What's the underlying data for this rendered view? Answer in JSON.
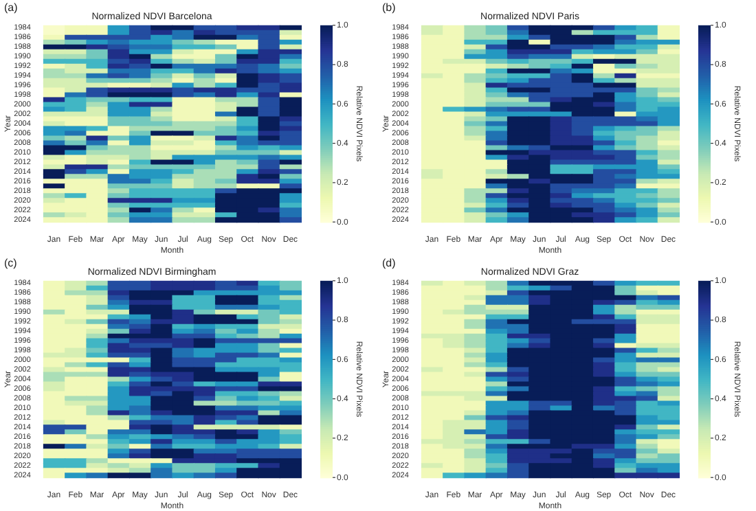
{
  "chart_data": [
    {
      "type": "heatmap",
      "title": "Normalized NDVI Barcelona",
      "xlabel": "Month",
      "ylabel": "Year",
      "clabel": "Relative NDVI Pixels",
      "annotations": [
        "(a)"
      ],
      "categories": [
        "Jan",
        "Feb",
        "Mar",
        "Apr",
        "May",
        "Jun",
        "Jul",
        "Aug",
        "Sep",
        "Oct",
        "Nov",
        "Dec"
      ],
      "y_categories": [
        "1984",
        null,
        "1986",
        null,
        "1988",
        null,
        "1990",
        null,
        "1992",
        null,
        "1994",
        null,
        "1996",
        null,
        "1998",
        null,
        "2000",
        null,
        "2002",
        null,
        "2004",
        null,
        "2006",
        null,
        "2008",
        null,
        "2010",
        null,
        "2012",
        null,
        "2014",
        null,
        "2016",
        null,
        "2018",
        null,
        "2020",
        null,
        "2022",
        null,
        "2024"
      ],
      "clim": [
        0,
        1
      ],
      "cticks": [
        {
          "value": 0,
          "label": "0.0"
        },
        {
          "value": 0.2,
          "label": "0.2"
        },
        {
          "value": 0.4,
          "label": "0.4"
        },
        {
          "value": 0.6,
          "label": "0.6"
        },
        {
          "value": 0.8,
          "label": "0.8"
        },
        {
          "value": 1,
          "label": "1.0"
        }
      ],
      "cells": [
        [
          0.05,
          0.1,
          0.1,
          0.6,
          0.8,
          1,
          1,
          0.8,
          0.8,
          0.9,
          0.9,
          1
        ],
        [
          0.05,
          0.1,
          0.1,
          0.6,
          0.8,
          0.9,
          0.7,
          0.9,
          0.8,
          0.8,
          0.8,
          0.2
        ],
        [
          0.1,
          0.8,
          0.8,
          0.8,
          0.8,
          0.6,
          0.7,
          1,
          1,
          0.7,
          0.8,
          0.1
        ],
        [
          0.3,
          0.4,
          0.6,
          0.7,
          0.6,
          0.6,
          0.4,
          0.3,
          0.1,
          0.1,
          0.8,
          0.6
        ],
        [
          1,
          1,
          0.9,
          0.8,
          0.7,
          0.7,
          0.5,
          0.5,
          0.4,
          0.1,
          0.8,
          0.2
        ],
        [
          0.2,
          0.2,
          0.4,
          0.9,
          0.6,
          0.6,
          0.2,
          0.1,
          0.1,
          0.6,
          0.9,
          0.9
        ],
        [
          0.3,
          0.3,
          0.4,
          0.9,
          1,
          0.3,
          0.1,
          0.1,
          0.4,
          1,
          0.9,
          0.7
        ],
        [
          0.5,
          0.5,
          0.5,
          0.8,
          0.9,
          0.5,
          0.3,
          0.2,
          0.4,
          0.9,
          0.9,
          0.5
        ],
        [
          0.1,
          0.2,
          0.5,
          0.9,
          0.8,
          1,
          0.7,
          0.7,
          0.7,
          0.8,
          0.7,
          0.4
        ],
        [
          0.3,
          0.2,
          0.2,
          0.7,
          0.7,
          0.5,
          0.5,
          0.7,
          0.9,
          0.8,
          0.7,
          0.6
        ],
        [
          0.3,
          0.3,
          0.7,
          0.8,
          0.7,
          0.4,
          0.2,
          0.4,
          0.2,
          1,
          0.9,
          0.8
        ],
        [
          0.2,
          0.2,
          0.4,
          0.4,
          0.4,
          0.3,
          0.1,
          0.3,
          0.1,
          1,
          0.9,
          0.8
        ],
        [
          0.2,
          0.2,
          0.2,
          0.1,
          0.1,
          0.2,
          0.6,
          0.3,
          0.5,
          1,
          0.8,
          0.9
        ],
        [
          0.1,
          0.2,
          0.8,
          0.9,
          0.9,
          0.9,
          0.8,
          0.9,
          0.9,
          0.8,
          0.8,
          0.9
        ],
        [
          0.1,
          0.7,
          0.8,
          1,
          1,
          1,
          0.8,
          0.7,
          0.9,
          0.6,
          0.9,
          0.1
        ],
        [
          0.9,
          0.5,
          0.4,
          0.4,
          0.5,
          0.5,
          0.1,
          0.1,
          0.3,
          0.3,
          0.8,
          1
        ],
        [
          0.5,
          0.5,
          0.3,
          0.6,
          0.9,
          0.9,
          0.1,
          0.1,
          0.2,
          0.3,
          0.8,
          1
        ],
        [
          0.6,
          0.5,
          0.2,
          0.6,
          0.6,
          0.3,
          0.1,
          0.1,
          0.2,
          1,
          0.8,
          1
        ],
        [
          0.2,
          0.2,
          0.2,
          0.6,
          0.6,
          0.2,
          0.1,
          0.1,
          0.7,
          1,
          0.8,
          1
        ],
        [
          0.1,
          0.1,
          0.1,
          0.4,
          0.4,
          0.3,
          0.1,
          0.1,
          0.2,
          0.5,
          1,
          0.9
        ],
        [
          0.2,
          0.1,
          0.1,
          0.4,
          0.4,
          0.4,
          0.3,
          0.3,
          0.3,
          0.5,
          1,
          0.8
        ],
        [
          0.6,
          0.6,
          0.5,
          0.1,
          0.3,
          0.3,
          0.3,
          0.3,
          0.4,
          0.6,
          1,
          0.9
        ],
        [
          0.6,
          0.7,
          0.1,
          0.1,
          0.4,
          1,
          1,
          0.4,
          0.4,
          0.5,
          0.9,
          0.8
        ],
        [
          0.4,
          0.3,
          0.9,
          0.4,
          0.6,
          0.1,
          0.1,
          0.2,
          0.9,
          0.7,
          1,
          0.8
        ],
        [
          0.7,
          0.4,
          0.7,
          0.1,
          0.6,
          0.2,
          0.2,
          0.1,
          0.5,
          0.7,
          0.8,
          0.8
        ],
        [
          1,
          1,
          0.4,
          0.3,
          0.3,
          0.1,
          0.1,
          0.1,
          0.3,
          0.6,
          0.5,
          0.6
        ],
        [
          1,
          0.6,
          0.3,
          0.3,
          0.3,
          0.2,
          0.2,
          0.2,
          0.4,
          0.4,
          0.4,
          0.2
        ],
        [
          0.2,
          0.1,
          0.2,
          0.2,
          0.3,
          0.2,
          0.6,
          0.6,
          0.6,
          0.6,
          0.7,
          0.6
        ],
        [
          0.1,
          0.1,
          0.2,
          0.1,
          0.5,
          1,
          1,
          0.6,
          0.3,
          0.4,
          0.8,
          1
        ],
        [
          0.2,
          0.9,
          0.9,
          0.3,
          0.4,
          0.4,
          0.4,
          0.4,
          0.3,
          0.3,
          0.8,
          0.3
        ],
        [
          1,
          0.8,
          0.6,
          0.1,
          0.6,
          0.6,
          0.5,
          0.3,
          0.3,
          0.6,
          0.9,
          0.8
        ],
        [
          1,
          0.3,
          0.3,
          0.7,
          0.6,
          0.6,
          0.3,
          0.3,
          0.3,
          0.9,
          1,
          0.4
        ],
        [
          0.1,
          0.1,
          0.1,
          0.7,
          0.7,
          0.5,
          0.2,
          0.3,
          0.4,
          0.9,
          0.9,
          0.6
        ],
        [
          1,
          0.1,
          0.1,
          0.4,
          0.4,
          0.4,
          0.2,
          0.3,
          0.3,
          0.1,
          0.1,
          0.8
        ],
        [
          0.1,
          0.1,
          0.1,
          0.3,
          0.5,
          0.5,
          0.5,
          0.5,
          0.8,
          1,
          1,
          1
        ],
        [
          0.3,
          0.5,
          0.1,
          0.4,
          0.5,
          0.5,
          0.5,
          0.5,
          1,
          1,
          1,
          0.6
        ],
        [
          0.2,
          0.1,
          0.1,
          0.9,
          0.9,
          0.9,
          0.6,
          0.6,
          1,
          1,
          1,
          0.6
        ],
        [
          0.1,
          0.1,
          0.1,
          0.4,
          0.5,
          0.5,
          0.5,
          0.5,
          1,
          1,
          1,
          0.5
        ],
        [
          0.1,
          0.1,
          0.1,
          0.3,
          1,
          0.7,
          0.3,
          0.1,
          1,
          1,
          0.9,
          0.7
        ],
        [
          0.3,
          0.2,
          0.1,
          0.4,
          0.6,
          0.6,
          0.2,
          0.2,
          0.5,
          1,
          1,
          0.7
        ],
        [
          0.1,
          0.1,
          0.1,
          0.3,
          0.7,
          0.7,
          0.3,
          0.3,
          1,
          1,
          1,
          0.8
        ]
      ]
    },
    {
      "type": "heatmap",
      "title": "Normalized NDVI Paris",
      "xlabel": "Month",
      "ylabel": "Year",
      "clabel": "Relative NDVI Pixels",
      "annotations": [
        "(b)"
      ],
      "categories": [
        "Jan",
        "Feb",
        "Mar",
        "Apr",
        "May",
        "Jun",
        "Jul",
        "Aug",
        "Sep",
        "Oct",
        "Nov",
        "Dec"
      ],
      "y_categories": [
        "1984",
        null,
        "1986",
        null,
        "1988",
        null,
        "1990",
        null,
        "1992",
        null,
        "1994",
        null,
        "1996",
        null,
        "1998",
        null,
        "2000",
        null,
        "2002",
        null,
        "2004",
        null,
        "2006",
        null,
        "2008",
        null,
        "2010",
        null,
        "2012",
        null,
        "2014",
        null,
        "2016",
        null,
        "2018",
        null,
        "2020",
        null,
        "2022",
        null,
        "2024"
      ],
      "clim": [
        0,
        1
      ],
      "cticks": [
        {
          "value": 0,
          "label": "0.0"
        },
        {
          "value": 0.2,
          "label": "0.2"
        },
        {
          "value": 0.4,
          "label": "0.4"
        },
        {
          "value": 0.6,
          "label": "0.6"
        },
        {
          "value": 0.8,
          "label": "0.8"
        },
        {
          "value": 1,
          "label": "1.0"
        }
      ],
      "cells": [
        [
          0.2,
          0.1,
          0.3,
          0.4,
          0.8,
          1,
          1,
          1,
          0.8,
          0.6,
          0.5,
          0.1
        ],
        [
          0.2,
          0.1,
          0.3,
          0.4,
          0.7,
          1,
          1,
          0.3,
          0.5,
          0.5,
          0.5,
          0.1
        ],
        [
          0.1,
          0.1,
          0.3,
          0.3,
          0.6,
          0.8,
          1,
          1,
          1,
          0.8,
          0.3,
          0.1
        ],
        [
          0.1,
          0.1,
          0.5,
          0.5,
          1,
          0.1,
          1,
          1,
          1,
          0.7,
          0.6,
          0.6
        ],
        [
          0.1,
          0.1,
          0.2,
          0.8,
          1,
          1,
          0.8,
          0.8,
          0.7,
          0.5,
          0.5,
          0.2
        ],
        [
          0.1,
          0.1,
          0.4,
          0.6,
          0.9,
          0.9,
          0.9,
          0.5,
          0.6,
          0.6,
          0.4,
          0.1
        ],
        [
          0.1,
          0.1,
          0.6,
          0.6,
          0.8,
          0.7,
          0.7,
          0.2,
          0.1,
          0.2,
          0.2,
          0.2
        ],
        [
          0.1,
          0.2,
          0.2,
          0.4,
          0.5,
          0.4,
          0.4,
          0.5,
          1,
          1,
          0.2,
          0.2
        ],
        [
          0.1,
          0.1,
          0.1,
          0.2,
          0.3,
          0.4,
          0.5,
          1,
          0.1,
          0.4,
          0.3,
          0.2
        ],
        [
          0.1,
          0.1,
          0.1,
          0.5,
          1,
          1,
          0.7,
          0.6,
          0.1,
          0.1,
          0.2,
          0.2
        ],
        [
          0.2,
          0.1,
          0.3,
          0.4,
          0.5,
          0.5,
          0.8,
          1,
          0.3,
          0.9,
          0.1,
          0.1
        ],
        [
          0.1,
          0.1,
          0.3,
          0.5,
          0.6,
          0.8,
          0.8,
          1,
          0.5,
          0.3,
          0.2,
          0.2
        ],
        [
          0.1,
          0.1,
          0.2,
          0.9,
          0.8,
          0.8,
          0.8,
          0.8,
          1,
          1,
          0.2,
          0.2
        ],
        [
          0.1,
          0.1,
          0.2,
          0.5,
          1,
          1,
          0.8,
          0.8,
          0.8,
          0.8,
          0.4,
          0.3
        ],
        [
          0.1,
          0.1,
          0.2,
          0.4,
          0.7,
          0.8,
          0.8,
          0.8,
          1,
          0.6,
          0.4,
          0.2
        ],
        [
          0.1,
          0.1,
          0.2,
          0.3,
          0.3,
          0.8,
          0.9,
          1,
          1,
          0.6,
          0.5,
          0.4
        ],
        [
          0.1,
          0.1,
          0.2,
          0.4,
          0.4,
          0.4,
          1,
          1,
          0.9,
          0.7,
          0.5,
          0.5
        ],
        [
          0.1,
          0.5,
          0.6,
          0.7,
          0.8,
          0.8,
          1,
          1,
          1,
          0.7,
          0.5,
          0.6
        ],
        [
          0.1,
          0.1,
          0.2,
          0.6,
          0.6,
          0.6,
          0.6,
          1,
          1,
          0.1,
          0.6,
          0.6
        ],
        [
          0.1,
          0.1,
          0.3,
          0.4,
          1,
          1,
          0.9,
          0.8,
          0.8,
          0.8,
          0.7,
          0.6
        ],
        [
          0.1,
          0.1,
          0.4,
          0.7,
          1,
          1,
          0.9,
          0.8,
          0.8,
          0.8,
          0.8,
          0.6
        ],
        [
          0.1,
          0.1,
          0.3,
          0.5,
          1,
          1,
          0.9,
          0.8,
          0.6,
          0.5,
          0.4,
          0.3
        ],
        [
          0.1,
          0.1,
          0.3,
          0.7,
          1,
          1,
          0.9,
          0.8,
          0.5,
          0.4,
          0.4,
          0.2
        ],
        [
          0.1,
          0.1,
          0.2,
          0.7,
          1,
          1,
          0.9,
          0.9,
          0.6,
          0.4,
          0.3,
          0.2
        ],
        [
          0.1,
          0.1,
          0.1,
          0.8,
          1,
          1,
          0.9,
          0.9,
          0.8,
          0.5,
          0.3,
          0.1
        ],
        [
          0.1,
          0.1,
          0.1,
          0.4,
          0.7,
          0.8,
          1,
          1,
          0.6,
          0.4,
          0.3,
          0.2
        ],
        [
          0.1,
          0.1,
          0.1,
          1,
          1,
          0.9,
          0.9,
          0.9,
          0.8,
          0.8,
          0.5,
          0.3
        ],
        [
          0.1,
          0.1,
          0.1,
          0.6,
          0.9,
          1,
          0.9,
          0.9,
          0.9,
          0.8,
          0.4,
          0.3
        ],
        [
          0.1,
          0.1,
          0.1,
          0.1,
          1,
          1,
          0.8,
          0.8,
          0.8,
          0.8,
          0.6,
          0.2
        ],
        [
          0.1,
          0.1,
          0.1,
          0.1,
          1,
          1,
          0.5,
          0.5,
          0.6,
          0.6,
          0.6,
          0.4
        ],
        [
          0.2,
          0.1,
          0.1,
          0.3,
          1,
          1,
          0.5,
          0.5,
          0.8,
          0.8,
          0.6,
          0.5
        ],
        [
          0.2,
          0.1,
          0.1,
          0.2,
          0.3,
          1,
          1,
          1,
          0.8,
          0.7,
          0.6,
          0.6
        ],
        [
          0.1,
          0.1,
          0.1,
          1,
          1,
          0.9,
          1,
          1,
          0.8,
          0.8,
          0.3,
          0.2
        ],
        [
          0.1,
          0.1,
          0.1,
          0.7,
          1,
          1,
          0.8,
          0.8,
          0.8,
          0.7,
          0.1,
          0.1
        ],
        [
          0.1,
          0.1,
          0.3,
          0.3,
          0.9,
          1,
          0.8,
          0.7,
          0.7,
          0.5,
          0.5,
          0.3
        ],
        [
          0.1,
          0.1,
          0.3,
          0.8,
          1,
          1,
          0.9,
          0.6,
          0.5,
          0.5,
          0.4,
          0.3
        ],
        [
          0.1,
          0.1,
          0.3,
          0.6,
          0.9,
          1,
          0.8,
          0.8,
          0.7,
          0.5,
          0.5,
          0.4
        ],
        [
          0.1,
          0.1,
          0.2,
          0.5,
          0.8,
          1,
          0.9,
          0.8,
          0.8,
          0.6,
          0.4,
          0.2
        ],
        [
          0.1,
          0.1,
          0.4,
          0.7,
          1,
          1,
          1,
          1,
          0.8,
          0.7,
          0.6,
          0.3
        ],
        [
          0.1,
          0.1,
          0.2,
          0.4,
          0.6,
          1,
          1,
          0.9,
          0.9,
          0.8,
          0.6,
          0.4
        ],
        [
          0.1,
          0.1,
          0.2,
          0.5,
          0.7,
          1,
          1,
          1,
          0.9,
          0.6,
          0.5,
          0.2
        ]
      ]
    },
    {
      "type": "heatmap",
      "title": "Normalized NDVI Birmingham",
      "xlabel": "Month",
      "ylabel": "Year",
      "clabel": "Relative NDVI Pixels",
      "annotations": [
        "(c)"
      ],
      "categories": [
        "Jan",
        "Feb",
        "Mar",
        "Apr",
        "May",
        "Jun",
        "Jul",
        "Aug",
        "Sep",
        "Oct",
        "Nov",
        "Dec"
      ],
      "y_categories": [
        "1984",
        null,
        "1986",
        null,
        "1988",
        null,
        "1990",
        null,
        "1992",
        null,
        "1994",
        null,
        "1996",
        null,
        "1998",
        null,
        "2000",
        null,
        "2002",
        null,
        "2004",
        null,
        "2006",
        null,
        "2008",
        null,
        "2010",
        null,
        "2012",
        null,
        "2014",
        null,
        "2016",
        null,
        "2018",
        null,
        "2020",
        null,
        "2022",
        null,
        "2024"
      ],
      "clim": [
        0,
        1
      ],
      "cticks": [
        {
          "value": 0,
          "label": "0.0"
        },
        {
          "value": 0.2,
          "label": "0.2"
        },
        {
          "value": 0.4,
          "label": "0.4"
        },
        {
          "value": 0.6,
          "label": "0.6"
        },
        {
          "value": 0.8,
          "label": "0.8"
        },
        {
          "value": 1,
          "label": "1.0"
        }
      ],
      "cells": [
        [
          0.1,
          0.2,
          0.3,
          0.8,
          0.8,
          0.9,
          0.9,
          0.9,
          0.8,
          0.9,
          0.5,
          0.4
        ],
        [
          0.1,
          0.2,
          0.5,
          0.8,
          0.8,
          0.9,
          0.9,
          0.9,
          0.8,
          0.8,
          0.6,
          0.4
        ],
        [
          0.1,
          0.3,
          0.3,
          0.9,
          1,
          1,
          1,
          0.6,
          0.6,
          0.6,
          0.6,
          0.6
        ],
        [
          0.1,
          0.1,
          0.2,
          0.8,
          1,
          1,
          0.5,
          0.5,
          1,
          1,
          0.5,
          0.3
        ],
        [
          0.1,
          0.1,
          0.2,
          0.7,
          0.9,
          0.9,
          0.5,
          0.5,
          1,
          1,
          0.5,
          0.5
        ],
        [
          0.1,
          0.1,
          0.4,
          0.6,
          1,
          1,
          0.5,
          0.5,
          0.7,
          0.7,
          0.6,
          0.5
        ],
        [
          0.3,
          0.1,
          0.2,
          0.2,
          1,
          1,
          0.9,
          0.4,
          0.2,
          0.2,
          0.4,
          0.5
        ],
        [
          0.1,
          0.1,
          0.1,
          0.5,
          0.6,
          1,
          0.9,
          1,
          1,
          0.5,
          0.4,
          0.2
        ],
        [
          0.1,
          0.2,
          0.4,
          0.8,
          0.7,
          0.9,
          0.9,
          1,
          1,
          1,
          0.4,
          0.3
        ],
        [
          0.1,
          0.1,
          0.1,
          0.7,
          0.8,
          1,
          0.5,
          0.6,
          0.5,
          0.5,
          0.2,
          0.2
        ],
        [
          0.1,
          0.1,
          0.2,
          0.4,
          0.9,
          1,
          0.6,
          0.7,
          0.4,
          0.6,
          0.3,
          0.1
        ],
        [
          0.1,
          0.1,
          0.3,
          1,
          1,
          1,
          0.8,
          0.8,
          0.5,
          0.4,
          0.3,
          0.6
        ],
        [
          0.1,
          0.1,
          0.5,
          0.7,
          0.9,
          0.9,
          0.9,
          1,
          0.8,
          0.8,
          0.8,
          0.8
        ],
        [
          0.1,
          0.1,
          0.5,
          0.9,
          0.8,
          0.8,
          0.9,
          1,
          0.6,
          0.6,
          0.4,
          0.1
        ],
        [
          0.1,
          0.2,
          0.4,
          0.9,
          0.9,
          1,
          0.7,
          0.6,
          0.6,
          0.6,
          0.4,
          0.5
        ],
        [
          0.2,
          0.2,
          0.5,
          0.8,
          0.8,
          1,
          0.7,
          0.6,
          0.8,
          0.8,
          0.7,
          0.1
        ],
        [
          0.1,
          0.1,
          0.1,
          0.1,
          0.5,
          1,
          0.8,
          0.8,
          0.8,
          0.5,
          0.5,
          0.6
        ],
        [
          0.1,
          0.3,
          0.5,
          0.8,
          0.6,
          1,
          0.8,
          0.8,
          0.5,
          0.5,
          0.5,
          0.5
        ],
        [
          0.2,
          0.1,
          0.1,
          0.9,
          0.9,
          1,
          1,
          1,
          0.6,
          0.6,
          0.6,
          0.5
        ],
        [
          0.3,
          0.3,
          0.3,
          0.9,
          0.8,
          0.9,
          0.9,
          1,
          1,
          1,
          0.6,
          0.1
        ],
        [
          0.3,
          0.1,
          0.1,
          0.3,
          0.6,
          0.8,
          0.9,
          1,
          1,
          1,
          0.4,
          0.1
        ],
        [
          0.2,
          0.1,
          0.1,
          0.5,
          0.8,
          1,
          0.8,
          0.5,
          0.6,
          0.6,
          0.9,
          0.9
        ],
        [
          0.2,
          0.1,
          0.1,
          0.6,
          0.9,
          0.9,
          0.9,
          0.9,
          0.8,
          0.8,
          1,
          1
        ],
        [
          0.1,
          0.1,
          0.1,
          0.6,
          0.9,
          0.8,
          1,
          0.9,
          0.5,
          0.5,
          0.4,
          0.3
        ],
        [
          0.1,
          0.3,
          0.3,
          0.6,
          0.6,
          1,
          1,
          0.8,
          0.4,
          0.6,
          0.5,
          0.2
        ],
        [
          0.1,
          0.2,
          0.2,
          0.6,
          0.6,
          1,
          1,
          0.3,
          0.3,
          0.4,
          0.4,
          0.5
        ],
        [
          0.1,
          0.1,
          0.3,
          0.6,
          0.7,
          1,
          1,
          1,
          0.7,
          0.7,
          0.6,
          0.6
        ],
        [
          0.1,
          0.1,
          0.3,
          0.9,
          0.7,
          0.9,
          1,
          1,
          0.9,
          0.9,
          0.3,
          0.7
        ],
        [
          0.1,
          0.1,
          0.1,
          0.3,
          0.5,
          0.7,
          0.7,
          0.9,
          0.8,
          0.7,
          1,
          1
        ],
        [
          0.2,
          0.1,
          0.1,
          0.1,
          0.8,
          0.8,
          0.7,
          0.9,
          0.5,
          0.8,
          1,
          1
        ],
        [
          0.8,
          0.8,
          0.1,
          0.1,
          0.9,
          1,
          0.9,
          0.2,
          0.2,
          0.2,
          0.2,
          0.1
        ],
        [
          0.8,
          0.4,
          0.1,
          0.7,
          0.7,
          1,
          0.9,
          0.9,
          1,
          0.9,
          0.6,
          0.4
        ],
        [
          0.1,
          0.1,
          0.3,
          0.6,
          0.5,
          0.6,
          0.7,
          0.8,
          1,
          1,
          0.6,
          0.5
        ],
        [
          0.1,
          0.1,
          0.1,
          0.5,
          0.6,
          0.9,
          0.6,
          0.6,
          0.8,
          0.6,
          0.6,
          0.5
        ],
        [
          1,
          0.7,
          0.2,
          0.4,
          0.1,
          0.7,
          0.5,
          0.5,
          0.6,
          0.6,
          0.5,
          0.2
        ],
        [
          0.1,
          0.1,
          0.1,
          0.6,
          0.8,
          1,
          1,
          0.7,
          0.7,
          0.8,
          0.8,
          0.8
        ],
        [
          0.1,
          0.1,
          0.1,
          0.7,
          0.9,
          1,
          1,
          0.9,
          0.9,
          0.8,
          0.8,
          0.8
        ],
        [
          0.5,
          0.5,
          0.3,
          0.1,
          0.1,
          0.1,
          0.9,
          0.9,
          0.9,
          1,
          1,
          1
        ],
        [
          0.5,
          0.5,
          0.2,
          0.3,
          0.2,
          0.6,
          0.4,
          0.4,
          0.5,
          0.5,
          0.9,
          1
        ],
        [
          0.1,
          0.1,
          0.1,
          0.2,
          0.3,
          0.7,
          0.4,
          0.4,
          0.6,
          1,
          1,
          1
        ],
        [
          0.1,
          0.6,
          0.7,
          1,
          1,
          0.7,
          0.6,
          0.7,
          0.8,
          1,
          1,
          1
        ]
      ]
    },
    {
      "type": "heatmap",
      "title": "Normalized NDVI Graz",
      "xlabel": "Month",
      "ylabel": "Year",
      "clabel": "Relative NDVI Pixels",
      "annotations": [
        "(d)"
      ],
      "categories": [
        "Jan",
        "Feb",
        "Mar",
        "Apr",
        "May",
        "Jun",
        "Jul",
        "Aug",
        "Sep",
        "Oct",
        "Nov",
        "Dec"
      ],
      "y_categories": [
        "1984",
        null,
        "1986",
        null,
        "1988",
        null,
        "1990",
        null,
        "1992",
        null,
        "1994",
        null,
        "1996",
        null,
        "1998",
        null,
        "2000",
        null,
        "2002",
        null,
        "2004",
        null,
        "2006",
        null,
        "2008",
        null,
        "2010",
        null,
        "2012",
        null,
        "2014",
        null,
        "2016",
        null,
        "2018",
        null,
        "2020",
        null,
        "2022",
        null,
        "2024"
      ],
      "clim": [
        0,
        1
      ],
      "cticks": [
        {
          "value": 0,
          "label": "0.0"
        },
        {
          "value": 0.2,
          "label": "0.2"
        },
        {
          "value": 0.4,
          "label": "0.4"
        },
        {
          "value": 0.6,
          "label": "0.6"
        },
        {
          "value": 0.8,
          "label": "0.8"
        },
        {
          "value": 1,
          "label": "1.0"
        }
      ],
      "cells": [
        [
          0.2,
          0.1,
          0.2,
          0.3,
          0.7,
          1,
          1,
          1,
          0.8,
          0.6,
          0.5,
          0.5
        ],
        [
          0.1,
          0.1,
          0.1,
          0.3,
          0.5,
          0.6,
          0.8,
          1,
          1,
          0.4,
          0.1,
          0.1
        ],
        [
          0.1,
          0.1,
          0.1,
          0.2,
          0.8,
          1,
          1,
          1,
          1,
          0.4,
          0.2,
          0.1
        ],
        [
          0.1,
          0.1,
          0.2,
          0.7,
          0.7,
          0.9,
          1,
          1,
          1,
          1,
          0.7,
          0.8
        ],
        [
          0.1,
          0.1,
          0.1,
          0.7,
          0.7,
          0.9,
          1,
          1,
          0.9,
          0.8,
          0.5,
          0.6
        ],
        [
          0.1,
          0.1,
          0.3,
          0.2,
          0.2,
          1,
          1,
          1,
          0.6,
          0.3,
          0.4,
          0.4
        ],
        [
          0.1,
          0.2,
          0.3,
          0.3,
          0.3,
          1,
          1,
          1,
          0.6,
          0.3,
          0.1,
          0.1
        ],
        [
          0.1,
          0.1,
          0.1,
          0.5,
          0.5,
          1,
          1,
          1,
          0.9,
          0.5,
          0.2,
          0.2
        ],
        [
          0.1,
          0.1,
          0.3,
          0.7,
          1,
          1,
          1,
          0.8,
          0.8,
          0.8,
          0.2,
          0.2
        ],
        [
          0.1,
          0.1,
          0.3,
          0.7,
          0.7,
          1,
          1,
          1,
          1,
          0.9,
          0.1,
          0.1
        ],
        [
          0.1,
          0.1,
          0.1,
          0.6,
          0.7,
          1,
          1,
          1,
          1,
          0.9,
          0.1,
          0.1
        ],
        [
          0.2,
          0.2,
          0.3,
          0.5,
          0.9,
          0.9,
          1,
          1,
          1,
          0.6,
          0.1,
          0.1
        ],
        [
          0.1,
          0.2,
          0.3,
          0.5,
          0.6,
          0.8,
          1,
          1,
          0.8,
          0.6,
          0.1,
          0.1
        ],
        [
          0.1,
          0.2,
          0.3,
          0.5,
          0.7,
          0.9,
          1,
          1,
          0.9,
          0.1,
          0.2,
          0.2
        ],
        [
          0.1,
          0.1,
          0.2,
          0.5,
          1,
          1,
          1,
          1,
          1,
          0.8,
          0.5,
          0.3
        ],
        [
          0.1,
          0.1,
          0.3,
          0.6,
          1,
          1,
          1,
          1,
          1,
          0.6,
          0.2,
          0.2
        ],
        [
          0.1,
          0.1,
          0.2,
          0.6,
          1,
          1,
          1,
          1,
          0.8,
          0.6,
          0.7,
          0.7
        ],
        [
          0.1,
          0.1,
          0.3,
          0.5,
          1,
          1,
          1,
          1,
          0.9,
          0.5,
          0.3,
          0.3
        ],
        [
          0.2,
          0.1,
          0.1,
          0.3,
          0.8,
          1,
          1,
          1,
          0.9,
          0.5,
          0.3,
          0.2
        ],
        [
          0.1,
          0.1,
          0.2,
          0.8,
          0.9,
          1,
          1,
          1,
          0.9,
          0.6,
          0.4,
          0.4
        ],
        [
          0.1,
          0.1,
          0.1,
          0.6,
          0.8,
          1,
          1,
          1,
          1,
          0.8,
          0.6,
          0.5
        ],
        [
          0.1,
          0.1,
          0.1,
          0.3,
          1,
          1,
          1,
          1,
          1,
          0.8,
          0.7,
          0.6
        ],
        [
          0.1,
          0.1,
          0.1,
          0.5,
          0.7,
          1,
          1,
          1,
          0.9,
          0.5,
          0.4,
          0.3
        ],
        [
          0.2,
          0.2,
          0.2,
          0.7,
          1,
          1,
          1,
          1,
          0.9,
          0.6,
          0.7,
          0.3
        ],
        [
          0.1,
          0.1,
          0.2,
          0.2,
          1,
          1,
          1,
          1,
          0.9,
          0.9,
          0.8,
          0.2
        ],
        [
          0.1,
          0.1,
          0.1,
          0.6,
          0.6,
          0.8,
          0.8,
          1,
          0.9,
          0.8,
          0.5,
          0.6
        ],
        [
          0.1,
          0.1,
          0.1,
          0.6,
          0.6,
          0.8,
          0.6,
          1,
          0.7,
          0.8,
          0.5,
          0.5
        ],
        [
          0.1,
          0.1,
          0.2,
          0.6,
          0.7,
          1,
          1,
          1,
          1,
          0.8,
          0.5,
          0.5
        ],
        [
          0.1,
          0.1,
          0.4,
          0.8,
          0.9,
          1,
          1,
          1,
          1,
          1,
          0.6,
          0.5
        ],
        [
          0.1,
          0.2,
          0.2,
          0.6,
          0.8,
          1,
          1,
          1,
          1,
          1,
          0.6,
          0.6
        ],
        [
          0.1,
          0.2,
          0.2,
          0.6,
          0.8,
          1,
          1,
          1,
          1,
          0.9,
          0.4,
          0.2
        ],
        [
          0.1,
          0.2,
          0.7,
          0.6,
          0.9,
          1,
          1,
          1,
          1,
          0.6,
          0.5,
          0.5
        ],
        [
          0.1,
          0.2,
          0.2,
          0.8,
          0.9,
          1,
          1,
          1,
          1,
          0.7,
          0.6,
          0.4
        ],
        [
          0.2,
          0.2,
          0.3,
          0.5,
          0.5,
          0.8,
          1,
          1,
          1,
          0.7,
          0.2,
          0.1
        ],
        [
          0.1,
          0.2,
          0.2,
          0.7,
          1,
          1,
          1,
          0.9,
          0.9,
          0.6,
          0.3,
          0.1
        ],
        [
          0.1,
          0.1,
          0.3,
          0.6,
          0.9,
          0.9,
          0.9,
          1,
          0.8,
          0.8,
          0.4,
          0.2
        ],
        [
          0.1,
          0.1,
          0.3,
          0.5,
          0.9,
          0.9,
          1,
          1,
          0.7,
          0.8,
          0.3,
          0.4
        ],
        [
          0.1,
          0.1,
          0.2,
          0.5,
          0.9,
          0.9,
          0.9,
          1,
          0.9,
          0.6,
          0.4,
          0.4
        ],
        [
          0.2,
          0.1,
          0.2,
          0.4,
          0.8,
          1,
          1,
          1,
          0.9,
          0.5,
          0.6,
          0.6
        ],
        [
          0.1,
          0.1,
          0.2,
          0.5,
          0.8,
          1,
          1,
          1,
          1,
          0.4,
          0.7,
          0.6
        ],
        [
          0.1,
          0.5,
          0.6,
          0.7,
          0.8,
          1,
          1,
          1,
          1,
          0.9,
          0.9,
          0.9
        ]
      ]
    }
  ]
}
